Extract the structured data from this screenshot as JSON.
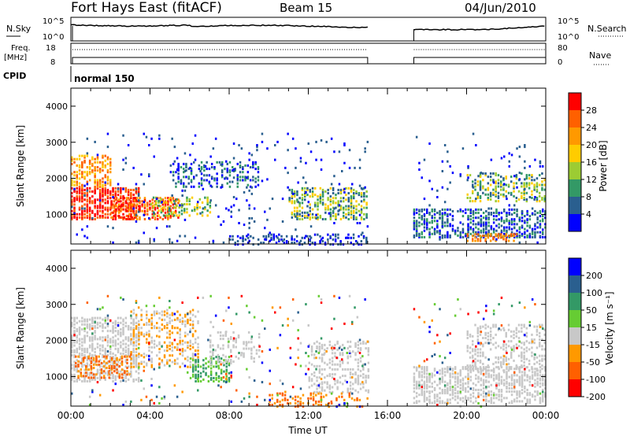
{
  "header": {
    "station": "Fort Hays East (fitACF)",
    "beam": "Beam 15",
    "date": "04/Jun/2010"
  },
  "noise_panel": {
    "left_label": "N.Sky",
    "right_label": "N.Search",
    "left_ticks": [
      "10^5",
      "10^0"
    ],
    "right_ticks": [
      "10^5",
      "10^0"
    ]
  },
  "freq_panel": {
    "left_label": "Freq.",
    "left_unit": "[MHz]",
    "right_label": "Nave",
    "left_ticks": [
      "18",
      "8"
    ],
    "right_ticks": [
      "80",
      "0"
    ]
  },
  "cpid_panel": {
    "label": "CPID",
    "mode": "normal 150"
  },
  "chart_data": [
    {
      "type": "heatmap",
      "title": "",
      "xlabel": "",
      "ylabel": "Slant Range [km]",
      "ylim": [
        180,
        4500
      ],
      "xlim": [
        "00:00",
        "24:00"
      ],
      "y_ticks": [
        "1000",
        "2000",
        "3000",
        "4000"
      ],
      "data_gap": [
        "15:00",
        "17:20"
      ],
      "colorbar": {
        "label": "Power [dB]",
        "ticks": [
          "28",
          "24",
          "20",
          "16",
          "12",
          "8",
          "4"
        ],
        "colors": [
          "#ff0000",
          "#ff6000",
          "#ff9900",
          "#ffcc00",
          "#9ccc33",
          "#339966",
          "#2a5f8f",
          "#0000ff"
        ]
      }
    },
    {
      "type": "heatmap",
      "title": "",
      "xlabel": "Time UT",
      "ylabel": "Slant Range [km]",
      "ylim": [
        180,
        4500
      ],
      "xlim": [
        "00:00",
        "24:00"
      ],
      "x_ticks": [
        "00:00",
        "04:00",
        "08:00",
        "12:00",
        "16:00",
        "20:00",
        "00:00"
      ],
      "y_ticks": [
        "1000",
        "2000",
        "3000",
        "4000"
      ],
      "data_gap": [
        "15:00",
        "17:20"
      ],
      "colorbar": {
        "label": "Velocity [m s⁻¹]",
        "ticks": [
          "200",
          "100",
          "50",
          "15",
          "-15",
          "-50",
          "-100",
          "-200"
        ],
        "colors": [
          "#0000ff",
          "#2a5f8f",
          "#339966",
          "#66cc33",
          "#c8c8c8",
          "#ff9900",
          "#ff6000",
          "#ff0000"
        ]
      }
    }
  ]
}
